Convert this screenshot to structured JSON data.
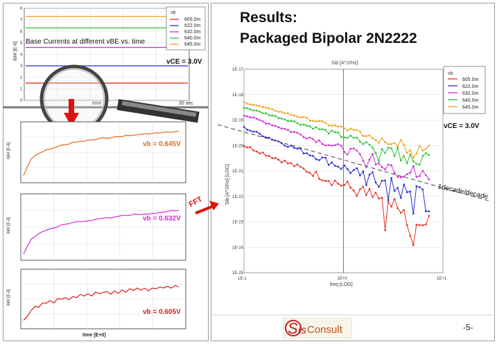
{
  "slide": {
    "title_line1": "Results:",
    "title_line2": "Packaged Bipolar  2N2222",
    "page_number": "-5-",
    "logo_text": "Consult",
    "fft_label": "FFT"
  },
  "chart_data": [
    {
      "id": "base_currents",
      "type": "line",
      "title": "Base Currents at different vBE vs. time",
      "ylabel": "IbM [E-6]",
      "xlabel": "time",
      "x_end_label": "20 sec",
      "annotation": "vCE = 3.0V",
      "ylim": [
        0,
        8
      ],
      "y_ticks": [
        "0",
        "1",
        "2",
        "3",
        "4",
        "5",
        "6",
        "7",
        "8"
      ],
      "legend_title": "vb",
      "legend_position": "top-right",
      "series": [
        {
          "name": "605.0m",
          "color": "#e0301e",
          "level": 1.5
        },
        {
          "name": "622.0m",
          "color": "#2a2ad0",
          "level": 3.0
        },
        {
          "name": "632.0m",
          "color": "#d32ad3",
          "level": 4.6
        },
        {
          "name": "640.0m",
          "color": "#30c030",
          "level": 6.3
        },
        {
          "name": "645.0m",
          "color": "#f0a020",
          "level": 7.3
        }
      ]
    },
    {
      "id": "zoom_645",
      "type": "line",
      "ylabel": "IbM [E-6]",
      "label": "vb = 0.645V",
      "color": "#e06a1a",
      "values": [
        0.08,
        0.25,
        0.38,
        0.44,
        0.49,
        0.52,
        0.55,
        0.58,
        0.6,
        0.62,
        0.64,
        0.66,
        0.67,
        0.69,
        0.7,
        0.71,
        0.72,
        0.73,
        0.74,
        0.75,
        0.76,
        0.77,
        0.78,
        0.79,
        0.79,
        0.8,
        0.81,
        0.82,
        0.82,
        0.83,
        0.84,
        0.84,
        0.85,
        0.86,
        0.86,
        0.87,
        0.87,
        0.88,
        0.88,
        0.89,
        0.89,
        0.9
      ]
    },
    {
      "id": "zoom_632",
      "type": "line",
      "ylabel": "IbM [E-6]",
      "label": "vb = 0.632V",
      "color": "#d52ad5",
      "values": [
        0.05,
        0.2,
        0.3,
        0.36,
        0.4,
        0.43,
        0.46,
        0.48,
        0.5,
        0.52,
        0.54,
        0.55,
        0.57,
        0.58,
        0.59,
        0.6,
        0.61,
        0.62,
        0.63,
        0.64,
        0.65,
        0.66,
        0.67,
        0.67,
        0.68,
        0.69,
        0.7,
        0.7,
        0.71,
        0.72,
        0.72,
        0.73,
        0.74,
        0.74,
        0.75,
        0.75,
        0.76,
        0.77,
        0.77,
        0.78,
        0.78,
        0.79
      ]
    },
    {
      "id": "zoom_605",
      "type": "line",
      "ylabel": "IbM [E-6]",
      "xlabel": "time  [E+0]",
      "label": "vb = 0.605V",
      "color": "#e01818",
      "values": [
        0.1,
        0.18,
        0.3,
        0.38,
        0.35,
        0.45,
        0.42,
        0.48,
        0.44,
        0.52,
        0.5,
        0.55,
        0.5,
        0.57,
        0.54,
        0.6,
        0.56,
        0.62,
        0.58,
        0.64,
        0.6,
        0.63,
        0.66,
        0.61,
        0.67,
        0.63,
        0.68,
        0.65,
        0.7,
        0.66,
        0.71,
        0.67,
        0.72,
        0.68,
        0.73,
        0.7,
        0.74,
        0.71,
        0.75,
        0.72,
        0.76,
        0.74
      ]
    },
    {
      "id": "noise_psd",
      "type": "line",
      "title": "Sib [A^2/Hz]",
      "xlabel": "freq  [LOG]",
      "ylabel": "Sib [A^2/Hz]  [LOG]",
      "x_scale": "log",
      "y_scale": "log",
      "xlim": [
        0.1,
        10
      ],
      "ylim": [
        1e-25,
        1e-17
      ],
      "x_ticks": [
        "1E-1",
        "1E+0",
        "1E+1"
      ],
      "y_ticks": [
        "1E-17",
        "1E-18",
        "1E-19",
        "1E-20",
        "1E-21",
        "1E-22",
        "1E-23",
        "1E-24",
        "1E-25"
      ],
      "legend_title": "vb",
      "legend_position": "top-right",
      "annotation": "vCE = 3.0V",
      "slope_label": "1decade/decade",
      "series": [
        {
          "name": "605.0m",
          "color": "#e0301e",
          "start_exp": -20.0,
          "end_exp": -22.9,
          "noise": 0.55
        },
        {
          "name": "622.0m",
          "color": "#2a2ad0",
          "start_exp": -19.3,
          "end_exp": -22.2,
          "noise": 0.45
        },
        {
          "name": "632.0m",
          "color": "#d32ad3",
          "start_exp": -18.8,
          "end_exp": -21.3,
          "noise": 0.35
        },
        {
          "name": "640.0m",
          "color": "#30c030",
          "start_exp": -18.5,
          "end_exp": -20.6,
          "noise": 0.25
        },
        {
          "name": "645.0m",
          "color": "#f0a020",
          "start_exp": -18.3,
          "end_exp": -20.2,
          "noise": 0.2
        }
      ]
    }
  ]
}
